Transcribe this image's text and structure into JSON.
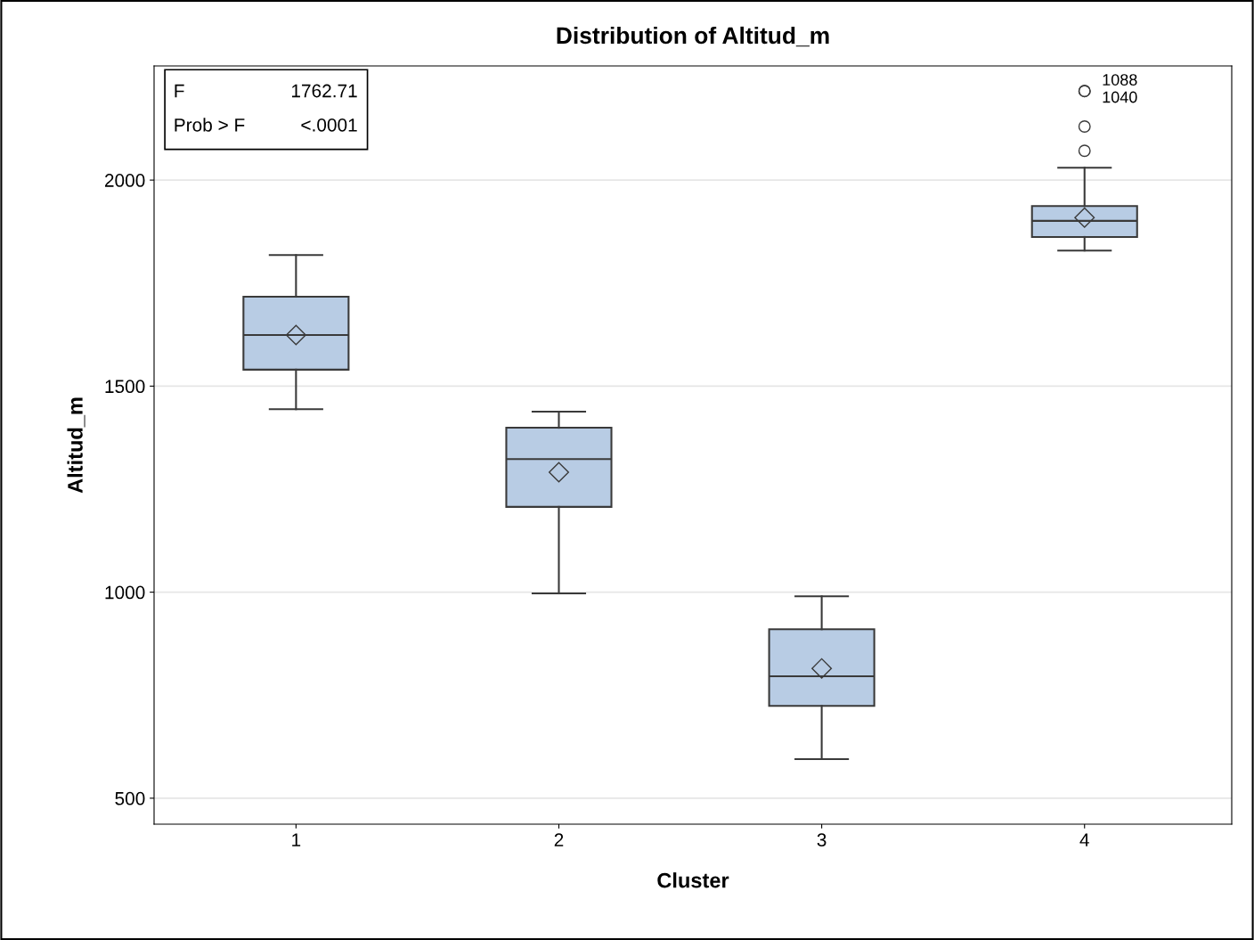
{
  "chart_data": {
    "type": "box",
    "title": "Distribution of Altitud_m",
    "xlabel": "Cluster",
    "ylabel": "Altitud_m",
    "categories": [
      "1",
      "2",
      "3",
      "4"
    ],
    "boxes": [
      {
        "low": 1444,
        "q1": 1540,
        "median": 1624,
        "q3": 1717,
        "high": 1818,
        "mean": 1624
      },
      {
        "low": 997,
        "q1": 1207,
        "median": 1323,
        "q3": 1399,
        "high": 1438,
        "mean": 1291
      },
      {
        "low": 595,
        "q1": 724,
        "median": 796,
        "q3": 910,
        "high": 990,
        "mean": 815
      },
      {
        "low": 1829,
        "q1": 1862,
        "median": 1901,
        "q3": 1937,
        "high": 2030,
        "mean": 1909,
        "outliers": [
          2071,
          2130,
          2216,
          2216
        ]
      }
    ],
    "color": "#b8cce4",
    "ylim": [
      437,
      2277
    ],
    "yticks": [
      500,
      1000,
      1500,
      2000
    ],
    "grid": "y",
    "annotations": [
      "F",
      "1762.71",
      "Prob > F",
      "<.0001",
      "1088",
      "1040"
    ]
  }
}
